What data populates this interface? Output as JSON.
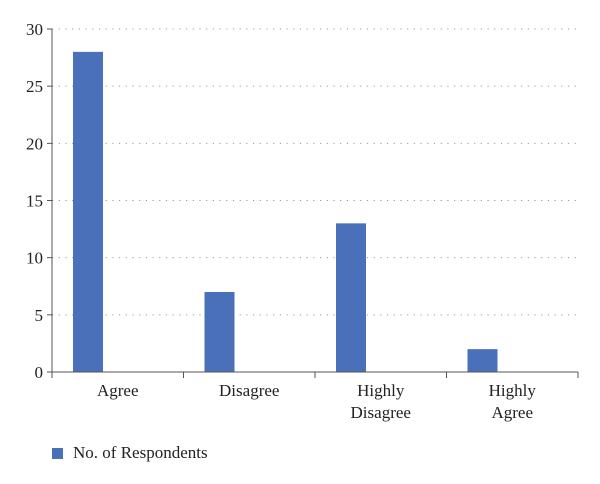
{
  "chart_data": {
    "type": "bar",
    "categories": [
      [
        "Agree"
      ],
      [
        "Disagree"
      ],
      [
        "Highly",
        "Disagree"
      ],
      [
        "Highly",
        "Agree"
      ]
    ],
    "series": [
      {
        "name": "No. of Respondents",
        "values": [
          28,
          7,
          13,
          2
        ],
        "color": "#4a70b9"
      }
    ],
    "yticks": [
      0,
      5,
      10,
      15,
      20,
      25,
      30
    ],
    "ylim": [
      0,
      30
    ],
    "grid": true,
    "legend_position": "bottom-left"
  }
}
